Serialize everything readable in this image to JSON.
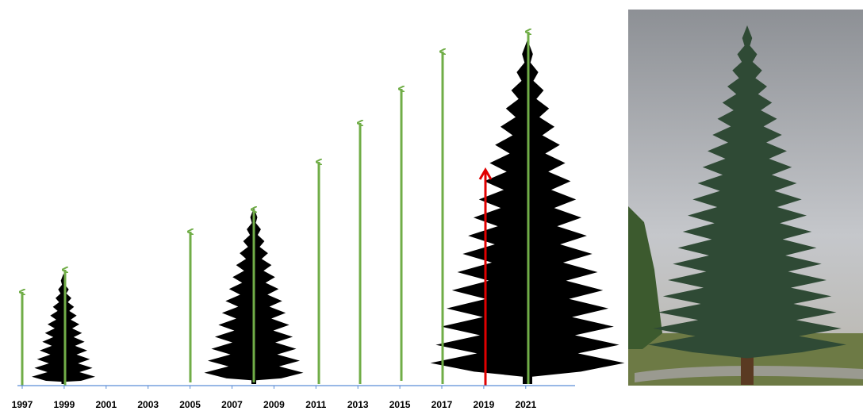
{
  "timeline": {
    "labels": [
      "1997",
      "1999",
      "2001",
      "2003",
      "2005",
      "2007",
      "2009",
      "2011",
      "2013",
      "2015",
      "2017",
      "2019",
      "2021"
    ]
  }
}
